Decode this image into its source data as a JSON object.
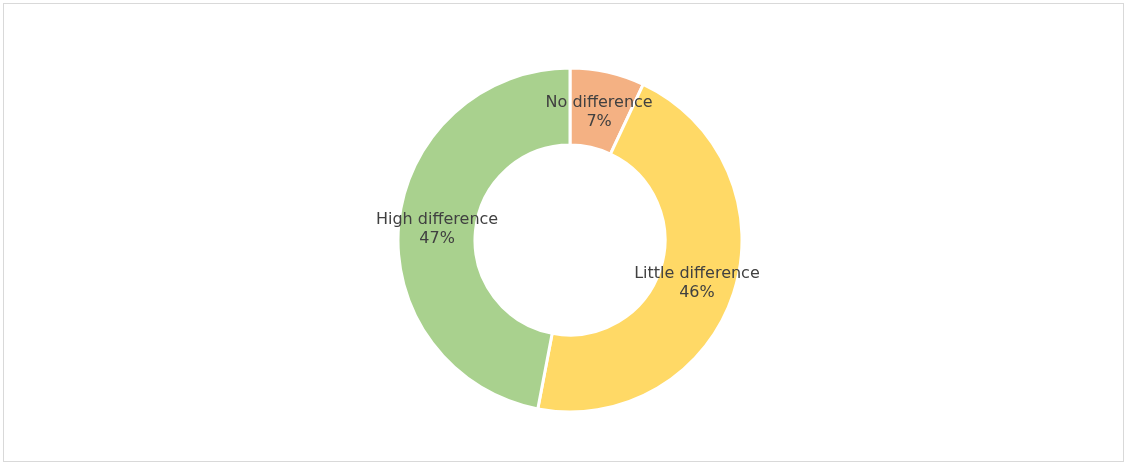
{
  "chart_data": {
    "type": "donut",
    "categories": [
      "No difference",
      "Little difference",
      "High difference"
    ],
    "values": [
      7,
      46,
      47
    ],
    "value_labels": [
      "7%",
      "46%",
      "47%"
    ],
    "colors": [
      "#f4b183",
      "#ffd966",
      "#a9d18e"
    ]
  }
}
